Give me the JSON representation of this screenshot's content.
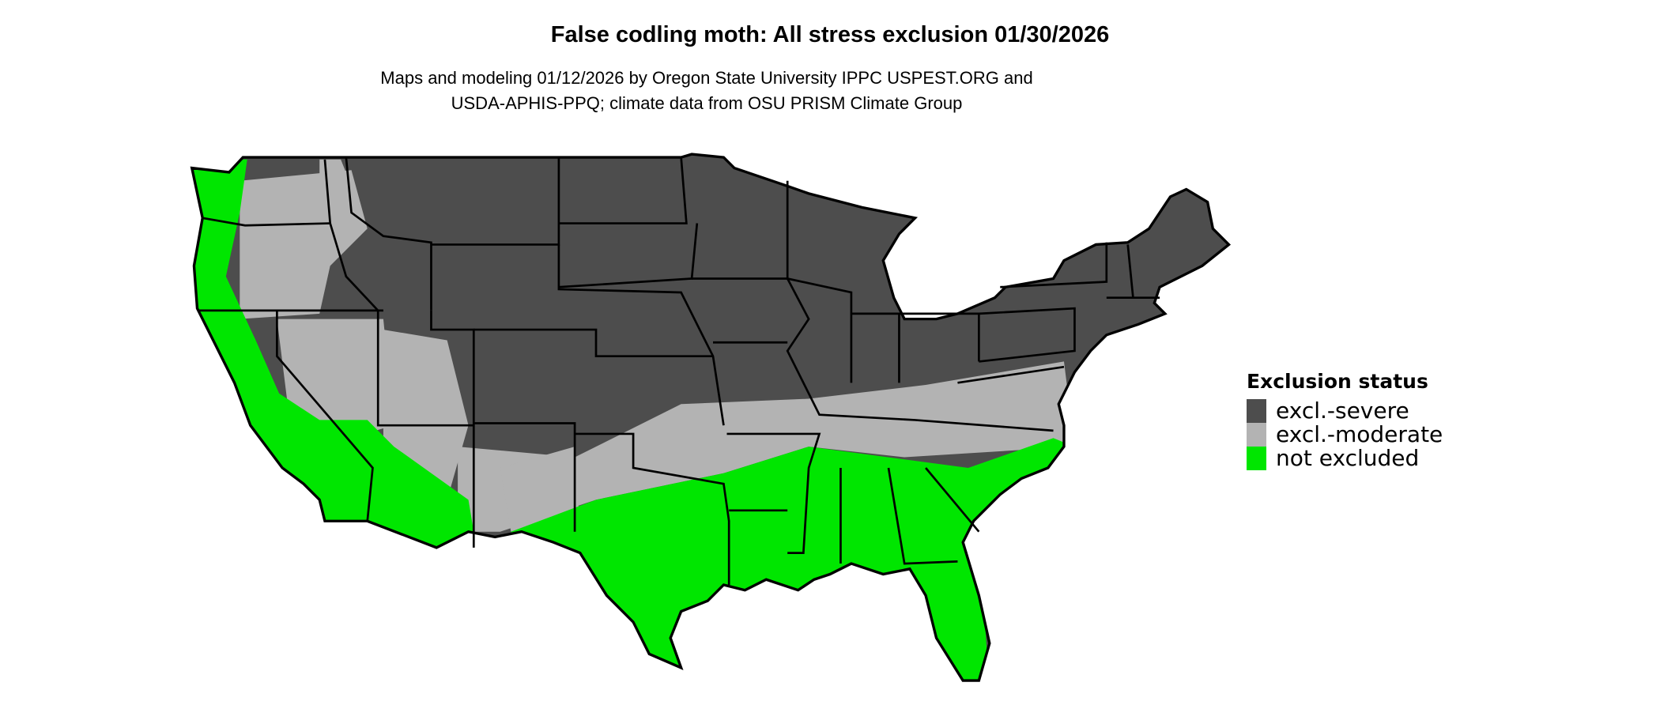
{
  "title": "False codling moth: All stress exclusion 01/30/2026",
  "subtitle": [
    "Maps and modeling 01/12/2026 by Oregon State University IPPC USPEST.ORG and",
    "USDA-APHIS-PPQ; climate data from OSU PRISM Climate Group"
  ],
  "legend": {
    "title": "Exclusion status",
    "items": [
      {
        "label": "excl.-severe",
        "color": "#4d4d4d"
      },
      {
        "label": "excl.-moderate",
        "color": "#b3b3b3"
      },
      {
        "label": "not excluded",
        "color": "#00e600"
      }
    ]
  },
  "map": {
    "region": "Contiguous United States",
    "state_border_color": "#000000"
  }
}
